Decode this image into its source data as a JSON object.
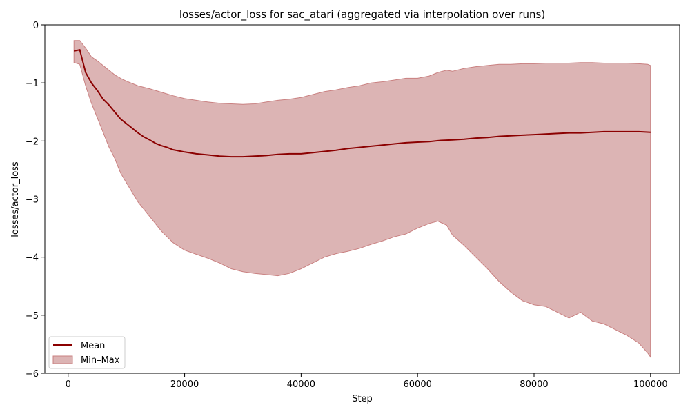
{
  "chart_data": {
    "type": "line",
    "title": "losses/actor_loss for sac_atari (aggregated via interpolation over runs)",
    "xlabel": "Step",
    "ylabel": "losses/actor_loss",
    "xlim": [
      -4000,
      105000
    ],
    "ylim": [
      -6,
      0
    ],
    "xticks": [
      0,
      20000,
      40000,
      60000,
      80000,
      100000
    ],
    "yticks": [
      0,
      -1,
      -2,
      -3,
      -4,
      -5,
      -6
    ],
    "xtick_labels": [
      "0",
      "20000",
      "40000",
      "60000",
      "80000",
      "100000"
    ],
    "ytick_labels": [
      "0",
      "−1",
      "−2",
      "−3",
      "−4",
      "−5",
      "−6"
    ],
    "grid": false,
    "legend_position": "lower-left",
    "colors": {
      "mean": "#8b0000",
      "band_fill": "#dcb4b4",
      "band_edge": "#c98080"
    },
    "series": [
      {
        "name": "Mean",
        "kind": "line",
        "x": [
          1000,
          2000,
          3000,
          4000,
          5000,
          6000,
          7000,
          8000,
          9000,
          10000,
          11000,
          12000,
          13000,
          14000,
          15000,
          16000,
          17000,
          18000,
          19000,
          20000,
          22000,
          24000,
          26000,
          28000,
          30000,
          32000,
          34000,
          36000,
          38000,
          40000,
          42000,
          44000,
          46000,
          48000,
          50000,
          52000,
          54000,
          56000,
          58000,
          60000,
          62000,
          64000,
          66000,
          68000,
          70000,
          72000,
          74000,
          76000,
          78000,
          80000,
          82000,
          84000,
          86000,
          88000,
          90000,
          92000,
          94000,
          96000,
          98000,
          100000
        ],
        "y": [
          -0.45,
          -0.43,
          -0.82,
          -1.0,
          -1.13,
          -1.28,
          -1.38,
          -1.5,
          -1.62,
          -1.7,
          -1.78,
          -1.86,
          -1.93,
          -1.98,
          -2.04,
          -2.08,
          -2.11,
          -2.15,
          -2.17,
          -2.19,
          -2.22,
          -2.24,
          -2.26,
          -2.27,
          -2.27,
          -2.26,
          -2.25,
          -2.23,
          -2.22,
          -2.22,
          -2.2,
          -2.18,
          -2.16,
          -2.13,
          -2.11,
          -2.09,
          -2.07,
          -2.05,
          -2.03,
          -2.02,
          -2.01,
          -1.99,
          -1.98,
          -1.97,
          -1.95,
          -1.94,
          -1.92,
          -1.91,
          -1.9,
          -1.89,
          -1.88,
          -1.87,
          -1.86,
          -1.86,
          -1.85,
          -1.84,
          -1.84,
          -1.84,
          -1.84,
          -1.85
        ]
      },
      {
        "name": "Min–Max",
        "kind": "band",
        "x": [
          1000,
          2000,
          3000,
          4000,
          5000,
          6000,
          7000,
          8000,
          9000,
          10000,
          12000,
          14000,
          16000,
          18000,
          20000,
          22000,
          24000,
          26000,
          28000,
          30000,
          32000,
          34000,
          36000,
          38000,
          40000,
          42000,
          44000,
          46000,
          48000,
          50000,
          52000,
          54000,
          56000,
          58000,
          60000,
          62000,
          63500,
          65000,
          66000,
          68000,
          70000,
          72000,
          74000,
          76000,
          78000,
          80000,
          82000,
          84000,
          86000,
          88000,
          90000,
          92000,
          94000,
          96000,
          98000,
          99500,
          100000
        ],
        "upper": [
          -0.27,
          -0.27,
          -0.4,
          -0.55,
          -0.62,
          -0.7,
          -0.78,
          -0.86,
          -0.92,
          -0.97,
          -1.05,
          -1.1,
          -1.16,
          -1.22,
          -1.27,
          -1.3,
          -1.33,
          -1.35,
          -1.36,
          -1.37,
          -1.36,
          -1.33,
          -1.3,
          -1.28,
          -1.25,
          -1.2,
          -1.15,
          -1.12,
          -1.08,
          -1.05,
          -1.0,
          -0.98,
          -0.95,
          -0.92,
          -0.92,
          -0.88,
          -0.82,
          -0.78,
          -0.8,
          -0.75,
          -0.72,
          -0.7,
          -0.68,
          -0.68,
          -0.67,
          -0.67,
          -0.66,
          -0.66,
          -0.66,
          -0.65,
          -0.65,
          -0.66,
          -0.66,
          -0.66,
          -0.67,
          -0.68,
          -0.7
        ],
        "lower": [
          -0.65,
          -0.68,
          -1.05,
          -1.35,
          -1.6,
          -1.85,
          -2.1,
          -2.3,
          -2.55,
          -2.72,
          -3.05,
          -3.3,
          -3.55,
          -3.75,
          -3.88,
          -3.95,
          -4.02,
          -4.1,
          -4.2,
          -4.25,
          -4.28,
          -4.3,
          -4.32,
          -4.28,
          -4.2,
          -4.1,
          -4.0,
          -3.94,
          -3.9,
          -3.85,
          -3.78,
          -3.72,
          -3.65,
          -3.6,
          -3.5,
          -3.42,
          -3.38,
          -3.45,
          -3.62,
          -3.8,
          -4.0,
          -4.2,
          -4.42,
          -4.6,
          -4.75,
          -4.82,
          -4.85,
          -4.95,
          -5.05,
          -4.95,
          -5.1,
          -5.15,
          -5.25,
          -5.35,
          -5.48,
          -5.65,
          -5.72
        ]
      }
    ]
  }
}
